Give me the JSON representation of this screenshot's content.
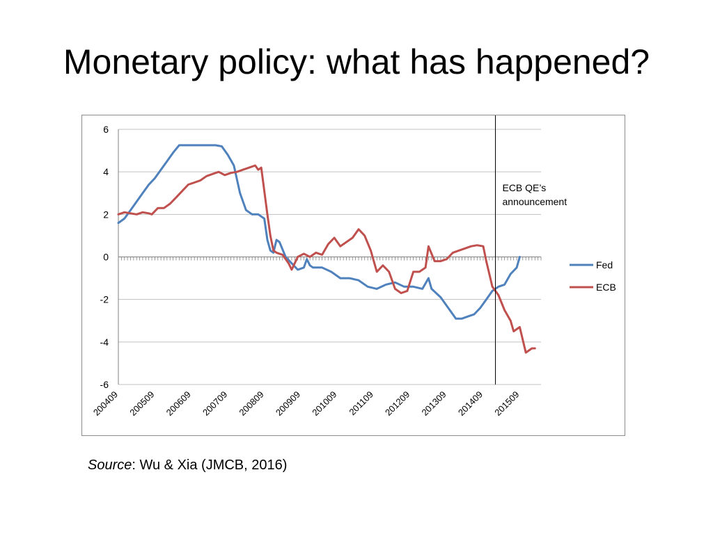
{
  "slide": {
    "title": "Monetary policy: what has happened?",
    "source_label": "Source",
    "source_text": ": Wu & Xia (JMCB, 2016)"
  },
  "chart_data": {
    "type": "line",
    "title": "",
    "xlabel": "",
    "ylabel": "",
    "ylim": [
      -6,
      6
    ],
    "yticks": [
      6,
      4,
      2,
      0,
      -2,
      -4,
      -6
    ],
    "xlim": [
      "200409",
      "201604"
    ],
    "xtick_labels": [
      "200409",
      "200509",
      "200609",
      "200709",
      "200809",
      "200909",
      "201009",
      "201109",
      "201209",
      "201309",
      "201409",
      "201509"
    ],
    "grid": "horizontal",
    "legend_position": "right",
    "colors": {
      "Fed": "#4f81bd",
      "ECB": "#c0504d",
      "grid": "#c0c0c0",
      "axis": "#808080",
      "marker": "#000000"
    },
    "annotation": {
      "text_lines": [
        "ECB QE’s",
        "announcement"
      ],
      "x": "201501"
    },
    "series": [
      {
        "name": "Fed",
        "points": [
          [
            "200409",
            1.6
          ],
          [
            "200411",
            1.8
          ],
          [
            "200501",
            2.2
          ],
          [
            "200503",
            2.6
          ],
          [
            "200505",
            3.0
          ],
          [
            "200507",
            3.4
          ],
          [
            "200509",
            3.7
          ],
          [
            "200511",
            4.1
          ],
          [
            "200601",
            4.5
          ],
          [
            "200603",
            4.9
          ],
          [
            "200605",
            5.25
          ],
          [
            "200607",
            5.25
          ],
          [
            "200609",
            5.25
          ],
          [
            "200611",
            5.25
          ],
          [
            "200701",
            5.25
          ],
          [
            "200703",
            5.25
          ],
          [
            "200705",
            5.25
          ],
          [
            "200707",
            5.2
          ],
          [
            "200709",
            4.8
          ],
          [
            "200711",
            4.3
          ],
          [
            "200801",
            3.0
          ],
          [
            "200803",
            2.2
          ],
          [
            "200805",
            2.0
          ],
          [
            "200807",
            2.0
          ],
          [
            "200809",
            1.8
          ],
          [
            "200810",
            0.8
          ],
          [
            "200811",
            0.3
          ],
          [
            "200812",
            0.2
          ],
          [
            "200901",
            0.8
          ],
          [
            "200902",
            0.7
          ],
          [
            "200904",
            0.0
          ],
          [
            "200906",
            -0.3
          ],
          [
            "200908",
            -0.6
          ],
          [
            "200910",
            -0.5
          ],
          [
            "200911",
            -0.1
          ],
          [
            "200912",
            -0.4
          ],
          [
            "201001",
            -0.5
          ],
          [
            "201004",
            -0.5
          ],
          [
            "201007",
            -0.7
          ],
          [
            "201010",
            -1.0
          ],
          [
            "201101",
            -1.0
          ],
          [
            "201104",
            -1.1
          ],
          [
            "201107",
            -1.4
          ],
          [
            "201110",
            -1.5
          ],
          [
            "201201",
            -1.3
          ],
          [
            "201204",
            -1.2
          ],
          [
            "201207",
            -1.4
          ],
          [
            "201210",
            -1.4
          ],
          [
            "201301",
            -1.5
          ],
          [
            "201303",
            -1.0
          ],
          [
            "201304",
            -1.5
          ],
          [
            "201307",
            -1.9
          ],
          [
            "201310",
            -2.5
          ],
          [
            "201312",
            -2.9
          ],
          [
            "201402",
            -2.9
          ],
          [
            "201404",
            -2.8
          ],
          [
            "201406",
            -2.7
          ],
          [
            "201408",
            -2.4
          ],
          [
            "201410",
            -2.0
          ],
          [
            "201412",
            -1.6
          ],
          [
            "201502",
            -1.4
          ],
          [
            "201504",
            -1.3
          ],
          [
            "201506",
            -0.8
          ],
          [
            "201508",
            -0.5
          ],
          [
            "201509",
            0.0
          ]
        ]
      },
      {
        "name": "ECB",
        "points": [
          [
            "200409",
            2.0
          ],
          [
            "200411",
            2.1
          ],
          [
            "200501",
            2.05
          ],
          [
            "200503",
            2.0
          ],
          [
            "200505",
            2.1
          ],
          [
            "200507",
            2.05
          ],
          [
            "200508",
            2.0
          ],
          [
            "200510",
            2.3
          ],
          [
            "200512",
            2.3
          ],
          [
            "200602",
            2.5
          ],
          [
            "200604",
            2.8
          ],
          [
            "200606",
            3.1
          ],
          [
            "200608",
            3.4
          ],
          [
            "200610",
            3.5
          ],
          [
            "200612",
            3.6
          ],
          [
            "200702",
            3.8
          ],
          [
            "200704",
            3.9
          ],
          [
            "200706",
            4.0
          ],
          [
            "200708",
            3.85
          ],
          [
            "200710",
            3.95
          ],
          [
            "200712",
            4.0
          ],
          [
            "200802",
            4.1
          ],
          [
            "200804",
            4.2
          ],
          [
            "200806",
            4.3
          ],
          [
            "200807",
            4.1
          ],
          [
            "200808",
            4.2
          ],
          [
            "200810",
            2.0
          ],
          [
            "200811",
            1.0
          ],
          [
            "200812",
            0.3
          ],
          [
            "200901",
            0.2
          ],
          [
            "200903",
            0.1
          ],
          [
            "200905",
            -0.3
          ],
          [
            "200906",
            -0.6
          ],
          [
            "200908",
            0.0
          ],
          [
            "200910",
            0.15
          ],
          [
            "200912",
            0.0
          ],
          [
            "201002",
            0.2
          ],
          [
            "201004",
            0.1
          ],
          [
            "201006",
            0.6
          ],
          [
            "201008",
            0.9
          ],
          [
            "201010",
            0.5
          ],
          [
            "201012",
            0.7
          ],
          [
            "201102",
            0.9
          ],
          [
            "201104",
            1.3
          ],
          [
            "201106",
            1.0
          ],
          [
            "201108",
            0.3
          ],
          [
            "201110",
            -0.7
          ],
          [
            "201112",
            -0.4
          ],
          [
            "201202",
            -0.7
          ],
          [
            "201204",
            -1.5
          ],
          [
            "201206",
            -1.7
          ],
          [
            "201208",
            -1.6
          ],
          [
            "201210",
            -0.7
          ],
          [
            "201212",
            -0.7
          ],
          [
            "201302",
            -0.5
          ],
          [
            "201303",
            0.5
          ],
          [
            "201305",
            -0.2
          ],
          [
            "201307",
            -0.2
          ],
          [
            "201309",
            -0.1
          ],
          [
            "201311",
            0.2
          ],
          [
            "201401",
            0.3
          ],
          [
            "201403",
            0.4
          ],
          [
            "201405",
            0.5
          ],
          [
            "201407",
            0.55
          ],
          [
            "201409",
            0.5
          ],
          [
            "201410",
            -0.2
          ],
          [
            "201412",
            -1.4
          ],
          [
            "201502",
            -1.8
          ],
          [
            "201504",
            -2.5
          ],
          [
            "201506",
            -3.0
          ],
          [
            "201507",
            -3.5
          ],
          [
            "201509",
            -3.3
          ],
          [
            "201511",
            -4.5
          ],
          [
            "201601",
            -4.3
          ],
          [
            "201602",
            -4.3
          ]
        ]
      }
    ]
  }
}
